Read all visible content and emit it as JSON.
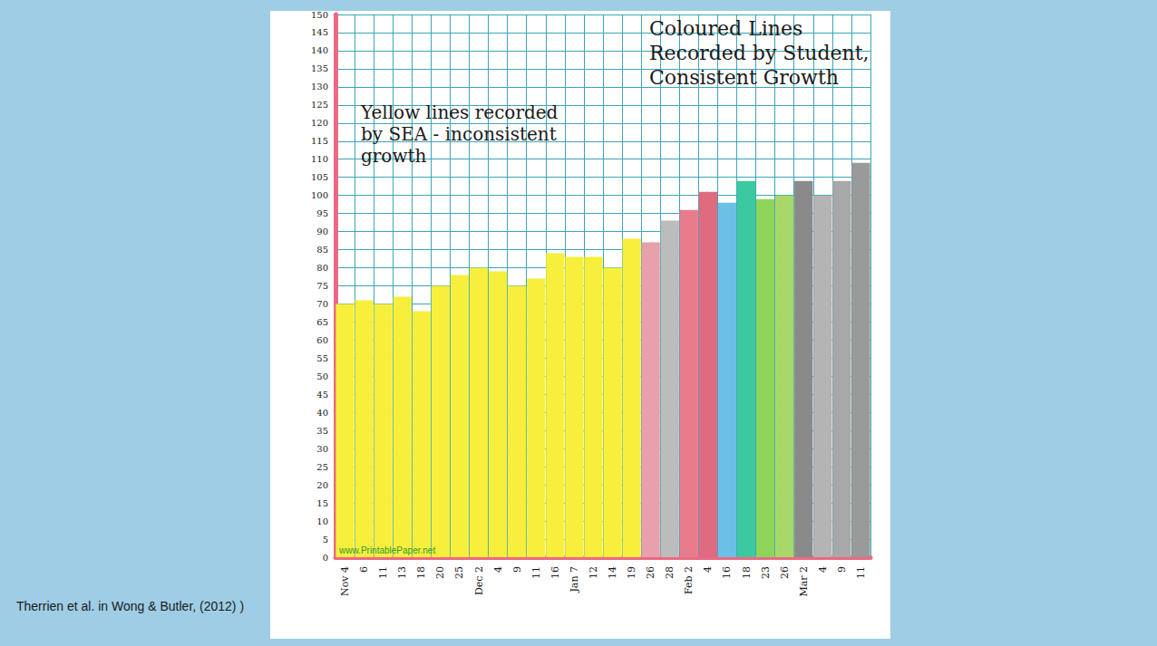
{
  "chart_data": {
    "type": "bar",
    "categories": [
      "Nov 4",
      "6",
      "11",
      "13",
      "18",
      "20",
      "25",
      "Dec 2",
      "4",
      "9",
      "11",
      "16",
      "Jan 7",
      "12",
      "14",
      "19",
      "26",
      "28",
      "Feb 2",
      "4",
      "16",
      "18",
      "23",
      "26",
      "Mar 2",
      "4",
      "9",
      "11"
    ],
    "values": [
      70,
      71,
      70,
      72,
      68,
      75,
      78,
      80,
      79,
      75,
      77,
      84,
      83,
      83,
      80,
      88,
      87,
      93,
      96,
      101,
      98,
      104,
      99,
      100,
      104,
      100,
      104,
      109
    ],
    "colors": [
      "#f7ef3c",
      "#f7ef3c",
      "#f7ef3c",
      "#f7ef3c",
      "#f7ef3c",
      "#f7ef3c",
      "#f7ef3c",
      "#f7ef3c",
      "#f7ef3c",
      "#f7ef3c",
      "#f7ef3c",
      "#f7ef3c",
      "#f7ef3c",
      "#f7ef3c",
      "#f7ef3c",
      "#f7ef3c",
      "#e8a0ac",
      "#bcbcbc",
      "#e87c8c",
      "#e06a80",
      "#6cc0e8",
      "#3cc9a0",
      "#8ed45a",
      "#a8d86a",
      "#8a8a8a",
      "#b4b4b4",
      "#a8a8a8",
      "#9a9a9a"
    ],
    "ylim": [
      0,
      150
    ],
    "yticks": [
      0,
      5,
      10,
      15,
      20,
      25,
      30,
      35,
      40,
      45,
      50,
      55,
      60,
      65,
      70,
      75,
      80,
      85,
      90,
      95,
      100,
      105,
      110,
      115,
      120,
      125,
      130,
      135,
      140,
      145,
      150
    ],
    "grid": true,
    "data_labels": false,
    "annotations": [
      "Yellow lines recorded by SEA - inconsistent growth",
      "Coloured Lines Recorded by Student, Consistent Growth",
      "www.PrintablePaper.net"
    ],
    "source": "Therrien et al. in Wong & Butler, (2012) )"
  }
}
